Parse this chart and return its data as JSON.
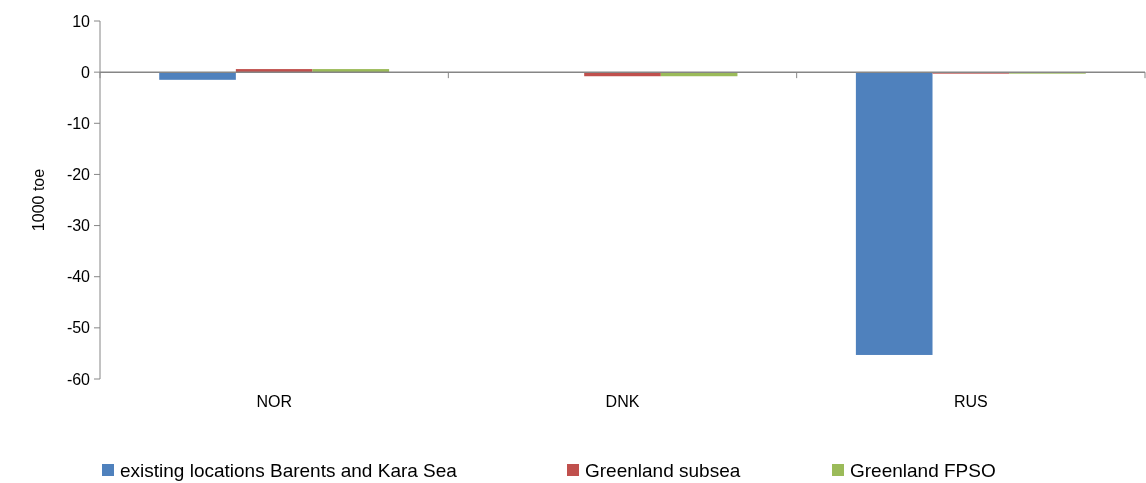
{
  "chart_data": {
    "type": "bar",
    "ylabel": "1000 toe",
    "categories": [
      "NOR",
      "DNK",
      "RUS"
    ],
    "series": [
      {
        "name": "existing locations Barents and Kara Sea",
        "color": "#4f81bd",
        "values": [
          -1.5,
          0,
          -55.3
        ]
      },
      {
        "name": "Greenland subsea",
        "color": "#c0504d",
        "values": [
          0.6,
          -0.8,
          -0.3
        ]
      },
      {
        "name": "Greenland FPSO",
        "color": "#9bbb59",
        "values": [
          0.6,
          -0.8,
          -0.3
        ]
      }
    ],
    "ylim": [
      -60,
      10
    ],
    "yticks": [
      10,
      0,
      -10,
      -20,
      -30,
      -40,
      -50,
      -60
    ],
    "legend": "bottom"
  }
}
